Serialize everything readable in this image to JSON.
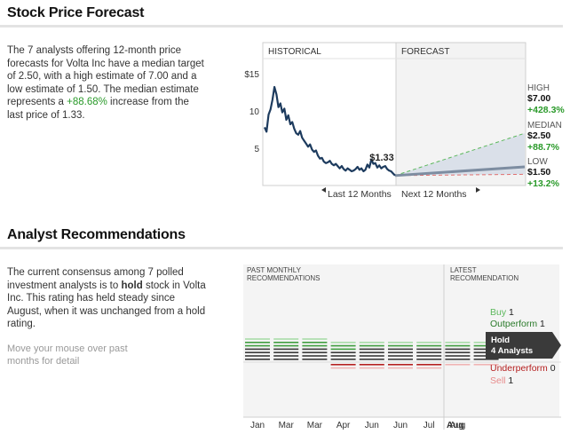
{
  "forecast": {
    "title": "Stock Price Forecast",
    "paragraph": {
      "p1": "The 7 analysts offering 12-month price forecasts for Volta Inc have a median target of 2.50, with a high estimate of 7.00 and a low estimate of 1.50. The median estimate represents a ",
      "pct": "+88.68%",
      "p2": " increase from the last price of 1.33."
    }
  },
  "recommendations": {
    "title": "Analyst Recommendations",
    "paragraph": {
      "p1": "The current consensus among 7 polled investment analysts is to ",
      "bold": "hold",
      "p2": " stock in Volta Inc. This rating has held steady since August, when it was unchanged from a hold rating."
    },
    "hint": "Move your mouse over past months for detail"
  },
  "chart_data": [
    {
      "type": "line",
      "panels": [
        "HISTORICAL",
        "FORECAST"
      ],
      "yticks": [
        {
          "value": 15,
          "label": "$15"
        },
        {
          "value": 10,
          "label": "10"
        },
        {
          "value": 5,
          "label": "5"
        }
      ],
      "ylim": [
        0,
        17
      ],
      "x_nav": {
        "prev": "Last 12 Months",
        "next": "Next 12 Months"
      },
      "last_price_label": "$1.33",
      "history": [
        7.8,
        7.2,
        9.5,
        10.2,
        11.5,
        13.2,
        12.2,
        10.5,
        11.0,
        9.8,
        10.3,
        8.8,
        9.4,
        8.2,
        8.5,
        7.6,
        7.0,
        6.8,
        7.3,
        6.4,
        6.0,
        5.6,
        5.2,
        5.5,
        4.8,
        4.5,
        4.7,
        4.0,
        3.6,
        3.7,
        3.2,
        3.0,
        3.1,
        3.3,
        2.9,
        2.7,
        2.9,
        2.6,
        2.3,
        2.6,
        2.2,
        2.0,
        2.3,
        2.1,
        1.9,
        2.0,
        2.2,
        2.5,
        2.1,
        2.3,
        1.9,
        2.1,
        2.8,
        2.4,
        3.5,
        2.9,
        3.0,
        2.4,
        2.7,
        2.3,
        2.5,
        2.6,
        2.2,
        2.0,
        1.9,
        1.6,
        1.33
      ],
      "forecast": {
        "start": 1.33,
        "high": {
          "label": "HIGH",
          "value": "$7.00",
          "change": "+428.3%",
          "target": 7.0
        },
        "median": {
          "label": "MEDIAN",
          "value": "$2.50",
          "change": "+88.7%",
          "target": 2.5
        },
        "low": {
          "label": "LOW",
          "value": "$1.50",
          "change": "+13.2%",
          "target": 1.5
        }
      },
      "colors": {
        "line": "#1d3b5e",
        "high": "#5cb85c",
        "median": "#7d8da1",
        "low": "#e07070"
      }
    },
    {
      "type": "bar",
      "panels": [
        "PAST MONTHLY RECOMMENDATIONS",
        "LATEST RECOMMENDATION"
      ],
      "categories": [
        "Jan",
        "Mar",
        "Mar",
        "Apr",
        "Jun",
        "Jun",
        "Jul",
        "Aug",
        "Aug"
      ],
      "series": [
        {
          "name": "Buy",
          "values": [
            1,
            1,
            1,
            1,
            1,
            1,
            1,
            1,
            1
          ]
        },
        {
          "name": "Outperform",
          "values": [
            2,
            2,
            2,
            2,
            1,
            1,
            1,
            1,
            1
          ]
        },
        {
          "name": "Hold",
          "values": [
            4,
            4,
            4,
            3,
            4,
            4,
            4,
            4,
            4
          ]
        },
        {
          "name": "Underperform",
          "values": [
            0,
            0,
            0,
            1,
            1,
            1,
            1,
            0,
            0
          ]
        },
        {
          "name": "Sell",
          "values": [
            0,
            0,
            0,
            1,
            1,
            1,
            1,
            1,
            1
          ]
        }
      ],
      "latest": [
        {
          "name": "Buy",
          "count": "1",
          "color": "#5cb85c"
        },
        {
          "name": "Outperform",
          "count": "1",
          "color": "#2a7a2a"
        },
        {
          "name": "Hold",
          "count": "4 Analysts",
          "color": "#333333"
        },
        {
          "name": "Underperform",
          "count": "0",
          "color": "#b52020"
        },
        {
          "name": "Sell",
          "count": "1",
          "color": "#e88a8a"
        }
      ]
    }
  ]
}
